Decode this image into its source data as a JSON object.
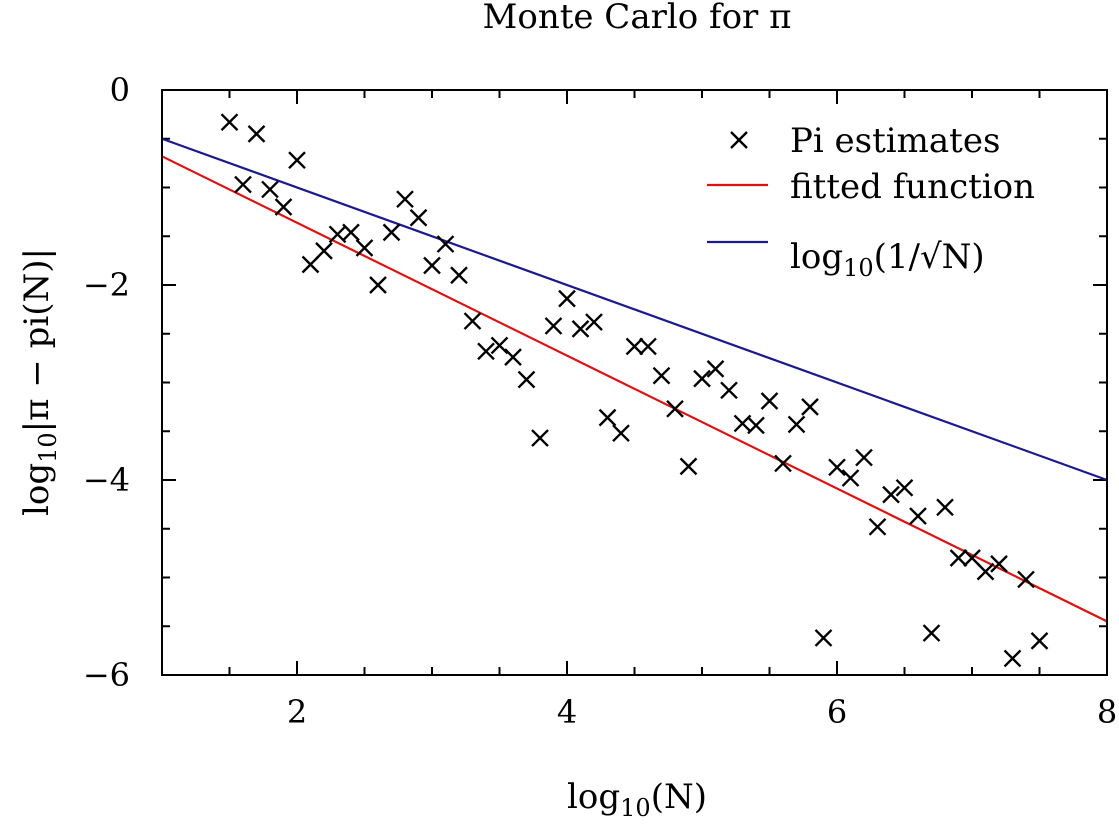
{
  "chart_data": {
    "type": "scatter",
    "title": "Monte Carlo for π",
    "xlabel_base": "log",
    "xlabel_sub": "10",
    "xlabel_arg": "(N)",
    "ylabel_base": "log",
    "ylabel_sub": "10",
    "ylabel_arg": "|π − pi(N)|",
    "xlim": [
      1,
      8
    ],
    "ylim": [
      -6,
      0
    ],
    "x_ticks": [
      2,
      4,
      6,
      8
    ],
    "y_ticks": [
      0,
      -2,
      -4,
      -6
    ],
    "y_tick_labels": [
      "0",
      "−2",
      "−4",
      "−6"
    ],
    "legend_position": "top-right",
    "series": [
      {
        "name": "Pi estimates",
        "kind": "scatter",
        "marker": "x",
        "color": "#000000",
        "points": [
          [
            1.5,
            -0.33
          ],
          [
            1.6,
            -0.97
          ],
          [
            1.7,
            -0.45
          ],
          [
            1.8,
            -1.02
          ],
          [
            1.9,
            -1.2
          ],
          [
            2.0,
            -0.72
          ],
          [
            2.1,
            -1.79
          ],
          [
            2.2,
            -1.65
          ],
          [
            2.3,
            -1.48
          ],
          [
            2.4,
            -1.46
          ],
          [
            2.5,
            -1.62
          ],
          [
            2.6,
            -2.0
          ],
          [
            2.7,
            -1.46
          ],
          [
            2.8,
            -1.12
          ],
          [
            2.9,
            -1.31
          ],
          [
            3.0,
            -1.8
          ],
          [
            3.1,
            -1.58
          ],
          [
            3.2,
            -1.9
          ],
          [
            3.3,
            -2.37
          ],
          [
            3.4,
            -2.68
          ],
          [
            3.5,
            -2.62
          ],
          [
            3.6,
            -2.74
          ],
          [
            3.7,
            -2.97
          ],
          [
            3.8,
            -3.57
          ],
          [
            3.9,
            -2.42
          ],
          [
            4.0,
            -2.14
          ],
          [
            4.1,
            -2.45
          ],
          [
            4.2,
            -2.38
          ],
          [
            4.3,
            -3.36
          ],
          [
            4.4,
            -3.52
          ],
          [
            4.5,
            -2.63
          ],
          [
            4.6,
            -2.63
          ],
          [
            4.7,
            -2.93
          ],
          [
            4.8,
            -3.27
          ],
          [
            4.9,
            -3.86
          ],
          [
            5.0,
            -2.96
          ],
          [
            5.1,
            -2.86
          ],
          [
            5.2,
            -3.08
          ],
          [
            5.3,
            -3.42
          ],
          [
            5.4,
            -3.44
          ],
          [
            5.5,
            -3.19
          ],
          [
            5.6,
            -3.83
          ],
          [
            5.7,
            -3.43
          ],
          [
            5.8,
            -3.25
          ],
          [
            5.9,
            -5.62
          ],
          [
            6.0,
            -3.87
          ],
          [
            6.1,
            -3.98
          ],
          [
            6.2,
            -3.77
          ],
          [
            6.3,
            -4.48
          ],
          [
            6.4,
            -4.15
          ],
          [
            6.5,
            -4.08
          ],
          [
            6.6,
            -4.37
          ],
          [
            6.7,
            -5.57
          ],
          [
            6.8,
            -4.28
          ],
          [
            6.9,
            -4.8
          ],
          [
            7.0,
            -4.8
          ],
          [
            7.1,
            -4.94
          ],
          [
            7.2,
            -4.86
          ],
          [
            7.3,
            -5.83
          ],
          [
            7.4,
            -5.02
          ],
          [
            7.5,
            -5.65
          ]
        ]
      },
      {
        "name": "fitted function",
        "kind": "line",
        "color": "#e01010",
        "points": [
          [
            1,
            -0.68
          ],
          [
            8,
            -5.45
          ]
        ]
      },
      {
        "name_base": "log",
        "name_sub": "10",
        "name_arg": "(1/√N)",
        "kind": "line",
        "color": "#1a1a8c",
        "points": [
          [
            1,
            -0.5
          ],
          [
            8,
            -4.0
          ]
        ]
      }
    ]
  }
}
